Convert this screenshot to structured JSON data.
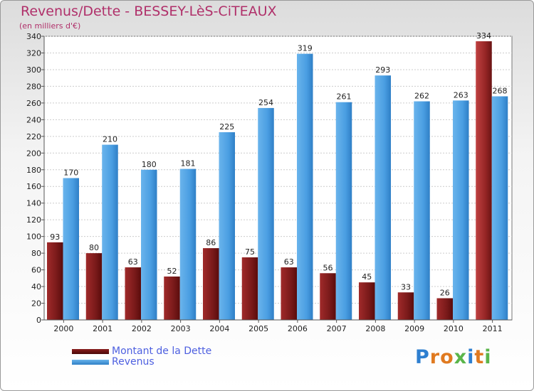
{
  "chart_data": {
    "type": "bar",
    "title": "Revenus/Dette - BESSEY-LèS-CiTEAUX",
    "subtitle": "(en milliers d'€)",
    "categories": [
      "2000",
      "2001",
      "2002",
      "2003",
      "2004",
      "2005",
      "2006",
      "2007",
      "2008",
      "2009",
      "2010",
      "2011"
    ],
    "series": [
      {
        "name": "Montant de la Dette",
        "color": "#7a1a1a",
        "highlight_color": "#b03030",
        "values": [
          93,
          80,
          63,
          52,
          86,
          75,
          63,
          56,
          45,
          33,
          26,
          334
        ]
      },
      {
        "name": "Revenus",
        "color": "#3d8fd8",
        "values": [
          170,
          210,
          180,
          181,
          225,
          254,
          319,
          261,
          293,
          262,
          263,
          268
        ]
      }
    ],
    "ylim": [
      0,
      340
    ],
    "yticks": [
      0,
      20,
      40,
      60,
      80,
      100,
      120,
      140,
      160,
      180,
      200,
      220,
      240,
      260,
      280,
      300,
      320,
      340
    ],
    "grid": true,
    "legend_position": "bottom-left"
  },
  "branding": {
    "logo_text": "Proxiti",
    "letter_colors": [
      "#2e7fd0",
      "#e07a20",
      "#e07a20",
      "#5ab54a",
      "#2e7fd0",
      "#e07a20",
      "#5ab54a"
    ]
  }
}
